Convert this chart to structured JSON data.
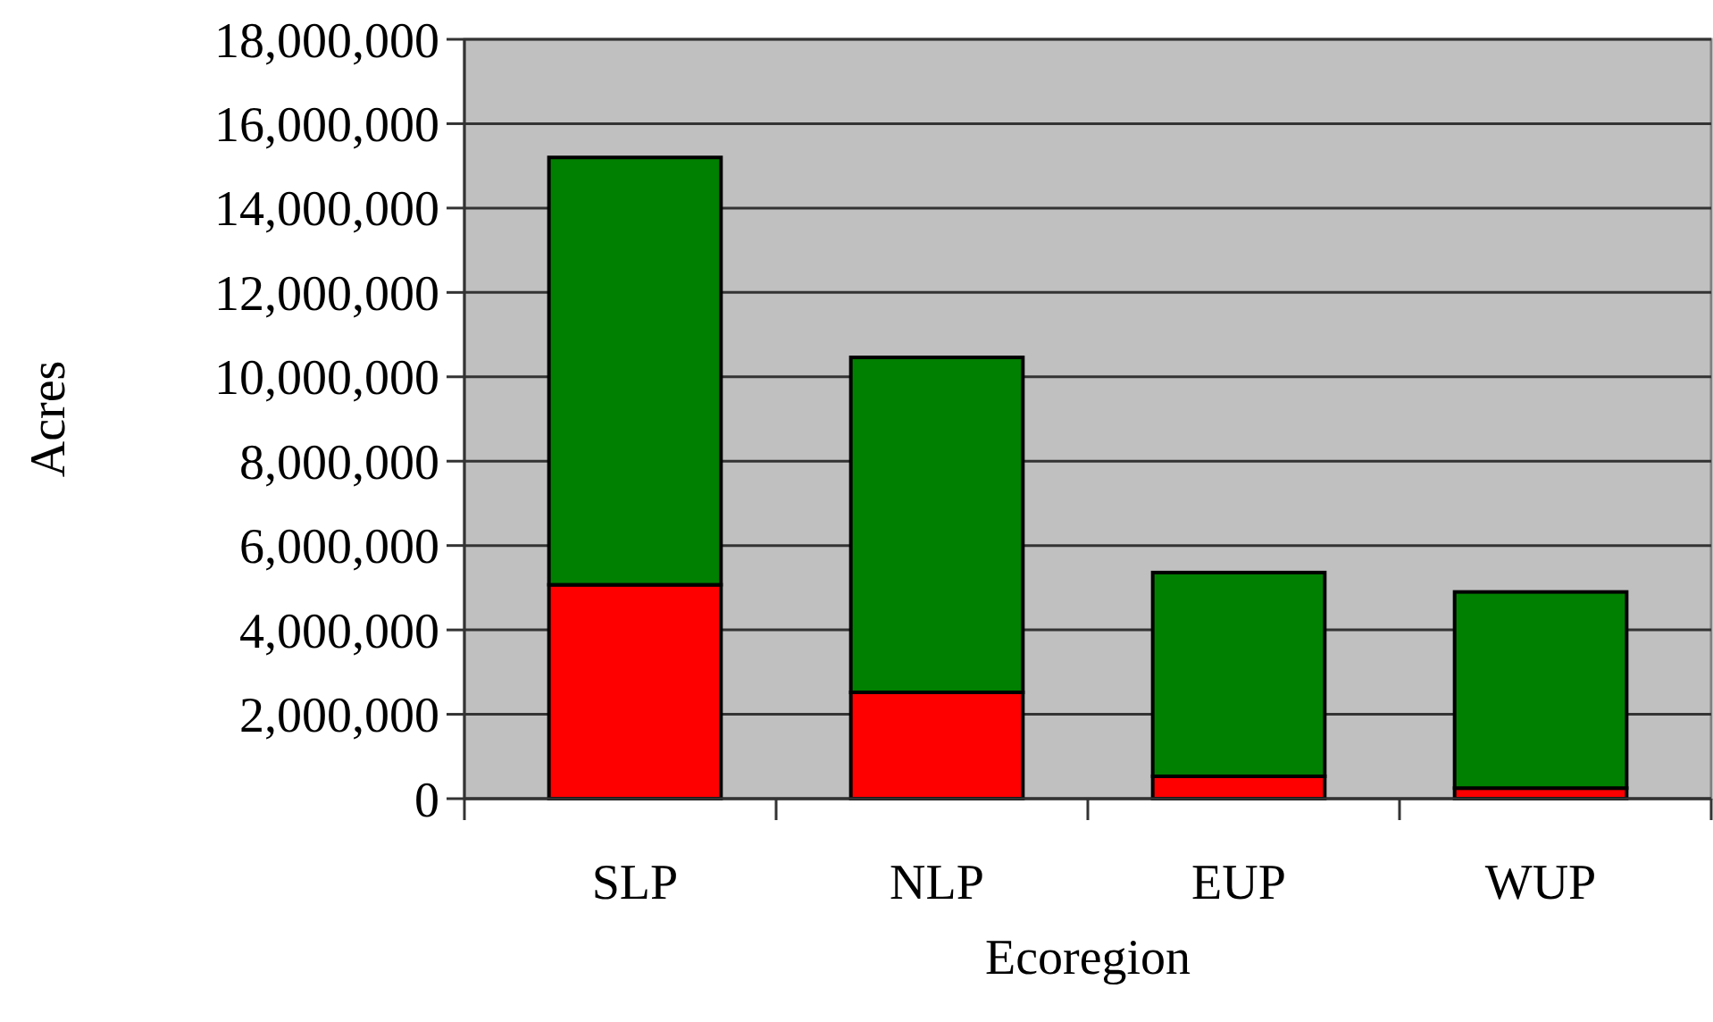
{
  "chart_data": {
    "type": "bar",
    "xlabel": "Ecoregion",
    "ylabel": "Acres",
    "categories": [
      "SLP",
      "NLP",
      "EUP",
      "WUP"
    ],
    "stacked": true,
    "series": [
      {
        "color": "#ff0000",
        "values": [
          5070000,
          2520000,
          530000,
          250000
        ]
      },
      {
        "color": "#008000",
        "values": [
          10130000,
          7940000,
          4830000,
          4650000
        ]
      }
    ],
    "ylim": [
      0,
      18000000
    ],
    "yticks": [
      {
        "value": 0,
        "label": "0"
      },
      {
        "value": 2000000,
        "label": "2,000,000"
      },
      {
        "value": 4000000,
        "label": "4,000,000"
      },
      {
        "value": 6000000,
        "label": "6,000,000"
      },
      {
        "value": 8000000,
        "label": "8,000,000"
      },
      {
        "value": 10000000,
        "label": "10,000,000"
      },
      {
        "value": 12000000,
        "label": "12,000,000"
      },
      {
        "value": 14000000,
        "label": "14,000,000"
      },
      {
        "value": 16000000,
        "label": "16,000,000"
      },
      {
        "value": 18000000,
        "label": "18,000,000"
      }
    ],
    "grid": "y"
  }
}
